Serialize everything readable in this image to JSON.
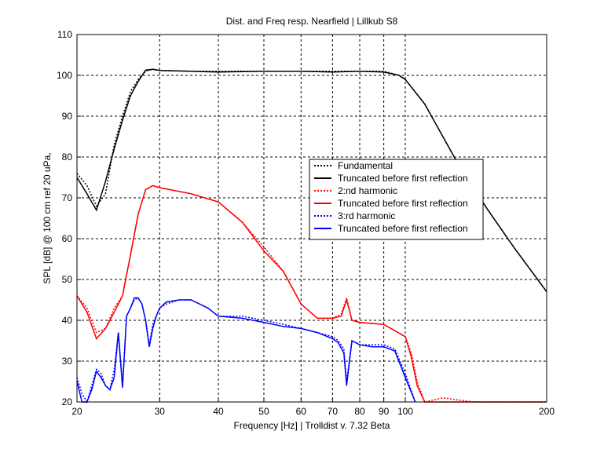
{
  "chart_data": {
    "type": "line",
    "title": "Dist. and Freq resp. Nearfield | Lillkub S8",
    "xlabel": "Frequency [Hz] | Trolldist v. 7.32 Beta",
    "ylabel": "SPL [dB] @ 100 cm ref 20 uPa,",
    "xscale": "log",
    "xlim": [
      20,
      200
    ],
    "ylim": [
      20,
      110
    ],
    "grid": true,
    "legend_position": "center-right",
    "xticks": [
      20,
      30,
      40,
      50,
      60,
      70,
      80,
      90,
      100,
      200
    ],
    "yticks": [
      20,
      30,
      40,
      50,
      60,
      70,
      80,
      90,
      100,
      110
    ],
    "series": [
      {
        "name": "Fundamental",
        "color": "#000000",
        "style": "dotted",
        "x": [
          20,
          21,
          22,
          23,
          24,
          25,
          26,
          27,
          28,
          29,
          30,
          35,
          40,
          50,
          60,
          70,
          80,
          90,
          97,
          100,
          110,
          130,
          150,
          170,
          200
        ],
        "y": [
          76,
          73,
          68,
          71,
          83,
          90,
          96,
          99,
          101,
          101.5,
          101.2,
          101,
          101,
          101,
          101,
          101,
          101,
          101,
          100,
          99,
          93,
          78,
          67,
          58,
          47
        ]
      },
      {
        "name": "Truncated before first reflection",
        "color": "#000000",
        "style": "solid",
        "x": [
          20,
          21,
          22,
          23,
          24,
          25,
          26,
          27,
          28,
          29,
          30,
          35,
          40,
          50,
          60,
          70,
          80,
          90,
          97,
          100,
          110,
          130,
          150,
          170,
          200
        ],
        "y": [
          75,
          71,
          67,
          74,
          82,
          89,
          95,
          98.5,
          101.3,
          101.5,
          101.2,
          101,
          100.8,
          101,
          101,
          100.8,
          101,
          100.8,
          100,
          99,
          93,
          78,
          67,
          58,
          47
        ]
      },
      {
        "name": "2:nd harmonic",
        "color": "#ff0000",
        "style": "dotted",
        "x": [
          20,
          21,
          22,
          23,
          24,
          25,
          26,
          27,
          28,
          29,
          30,
          35,
          40,
          45,
          50,
          55,
          60,
          65,
          70,
          73,
          75,
          77,
          80,
          90,
          100,
          103,
          106,
          110,
          120,
          140,
          160,
          180,
          200
        ],
        "y": [
          46,
          43,
          37,
          38,
          43,
          46,
          56,
          66,
          72,
          73,
          72.5,
          71,
          69,
          64,
          58,
          52,
          44,
          40.5,
          40.5,
          41.5,
          45.5,
          40,
          39.5,
          39,
          36,
          32,
          25,
          20,
          21,
          20,
          20,
          20,
          20
        ]
      },
      {
        "name": "Truncated before first reflection",
        "color": "#ff0000",
        "style": "solid",
        "x": [
          20,
          21,
          22,
          23,
          24,
          25,
          26,
          27,
          28,
          29,
          30,
          35,
          40,
          45,
          50,
          55,
          60,
          65,
          70,
          73,
          75,
          77,
          80,
          90,
          100,
          103,
          106,
          110,
          120,
          140,
          160,
          180,
          200
        ],
        "y": [
          46,
          42,
          35.5,
          38,
          42,
          46,
          56,
          66,
          72,
          73,
          72.5,
          71,
          69,
          64,
          57,
          52,
          44,
          40.5,
          40.5,
          41,
          45,
          40,
          39.5,
          39,
          36,
          31,
          24,
          20,
          20,
          20,
          20,
          20,
          20
        ]
      },
      {
        "name": "3:rd harmonic",
        "color": "#0000ff",
        "style": "dotted",
        "x": [
          20,
          20.5,
          21,
          21.5,
          22,
          22.5,
          23,
          23.5,
          24,
          24.5,
          25,
          25.5,
          26,
          26.5,
          27,
          27.5,
          28,
          28.5,
          29,
          29.5,
          30,
          31,
          33,
          35,
          38,
          40,
          45,
          50,
          55,
          60,
          65,
          70,
          72,
          74,
          75,
          77,
          80,
          85,
          90,
          95,
          100,
          105
        ],
        "y": [
          26,
          22,
          20,
          24,
          28,
          27,
          24,
          23,
          28,
          37,
          24,
          41,
          43,
          45,
          45.5,
          44,
          40,
          34,
          39,
          41,
          43,
          44,
          45,
          45,
          43,
          41,
          41,
          40,
          39,
          38,
          37,
          36,
          35,
          33,
          25,
          35,
          34,
          34,
          34,
          33,
          27,
          20
        ]
      },
      {
        "name": "Truncated before first reflection",
        "color": "#0000ff",
        "style": "solid",
        "x": [
          20,
          20.5,
          21,
          21.5,
          22,
          22.5,
          23,
          23.5,
          24,
          24.5,
          25,
          25.5,
          26,
          26.5,
          27,
          27.5,
          28,
          28.5,
          29,
          29.5,
          30,
          31,
          33,
          35,
          38,
          40,
          45,
          50,
          55,
          60,
          65,
          70,
          72,
          74,
          75,
          77,
          80,
          85,
          90,
          95,
          100,
          105
        ],
        "y": [
          25,
          20,
          20,
          23,
          27.5,
          26,
          24,
          23,
          26,
          37,
          23.5,
          41,
          43,
          45.5,
          45.5,
          44,
          40,
          33.5,
          38,
          41,
          43,
          44.5,
          45,
          45,
          43,
          41,
          40.5,
          39.5,
          38.5,
          38,
          37,
          35.5,
          34.5,
          32,
          24,
          35,
          34,
          33.5,
          33.5,
          32.5,
          26,
          20
        ]
      }
    ]
  }
}
